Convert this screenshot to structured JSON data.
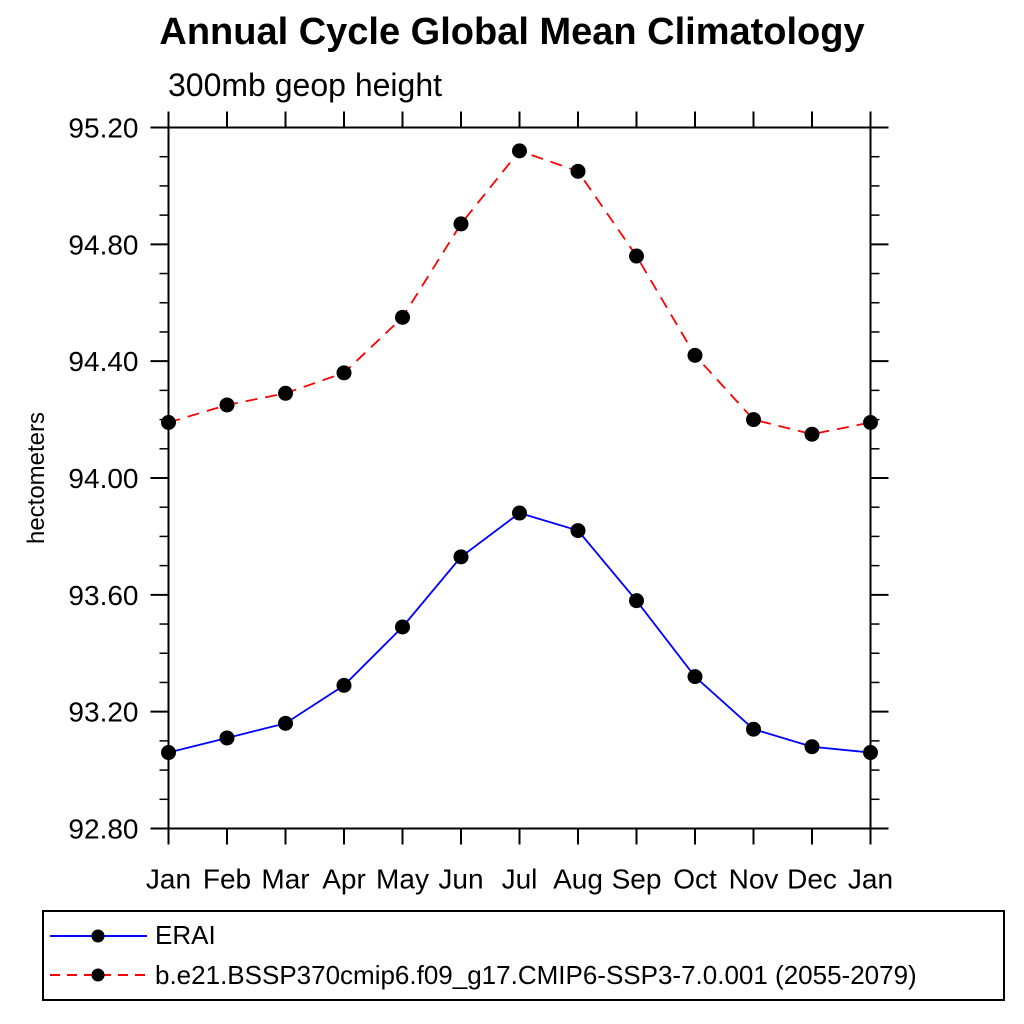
{
  "title": "Annual Cycle Global Mean Climatology",
  "subtitle": "300mb geop height",
  "chart_data": {
    "type": "line",
    "title": "Annual Cycle Global Mean Climatology",
    "subtitle": "300mb geop height",
    "xlabel": "",
    "ylabel": "hectometers",
    "categories": [
      "Jan",
      "Feb",
      "Mar",
      "Apr",
      "May",
      "Jun",
      "Jul",
      "Aug",
      "Sep",
      "Oct",
      "Nov",
      "Dec",
      "Jan"
    ],
    "series": [
      {
        "name": "ERAI",
        "color": "#0000ff",
        "style": "solid",
        "marker": "filled-circle",
        "marker_color": "#000000",
        "values": [
          93.06,
          93.11,
          93.16,
          93.29,
          93.49,
          93.73,
          93.88,
          93.82,
          93.58,
          93.32,
          93.14,
          93.08,
          93.06
        ]
      },
      {
        "name": "b.e21.BSSP370cmip6.f09_g17.CMIP6-SSP3-7.0.001 (2055-2079)",
        "color": "#ff0000",
        "style": "dashed",
        "marker": "filled-circle",
        "marker_color": "#000000",
        "values": [
          94.19,
          94.25,
          94.29,
          94.36,
          94.55,
          94.87,
          95.12,
          95.05,
          94.76,
          94.42,
          94.2,
          94.15,
          94.19
        ]
      }
    ],
    "ylim": [
      92.8,
      95.2
    ],
    "ytick_values": [
      92.8,
      93.2,
      93.6,
      94.0,
      94.4,
      94.8,
      95.2
    ],
    "ytick_labels": [
      "92.80",
      "93.20",
      "93.60",
      "94.00",
      "94.40",
      "94.80",
      "95.20"
    ],
    "minor_tick_step": 0.1,
    "grid": false,
    "axis_color": "#000000",
    "legend_position": "bottom-left"
  },
  "legend": {
    "items": [
      {
        "label": "ERAI"
      },
      {
        "label": "b.e21.BSSP370cmip6.f09_g17.CMIP6-SSP3-7.0.001 (2055-2079)"
      }
    ]
  }
}
